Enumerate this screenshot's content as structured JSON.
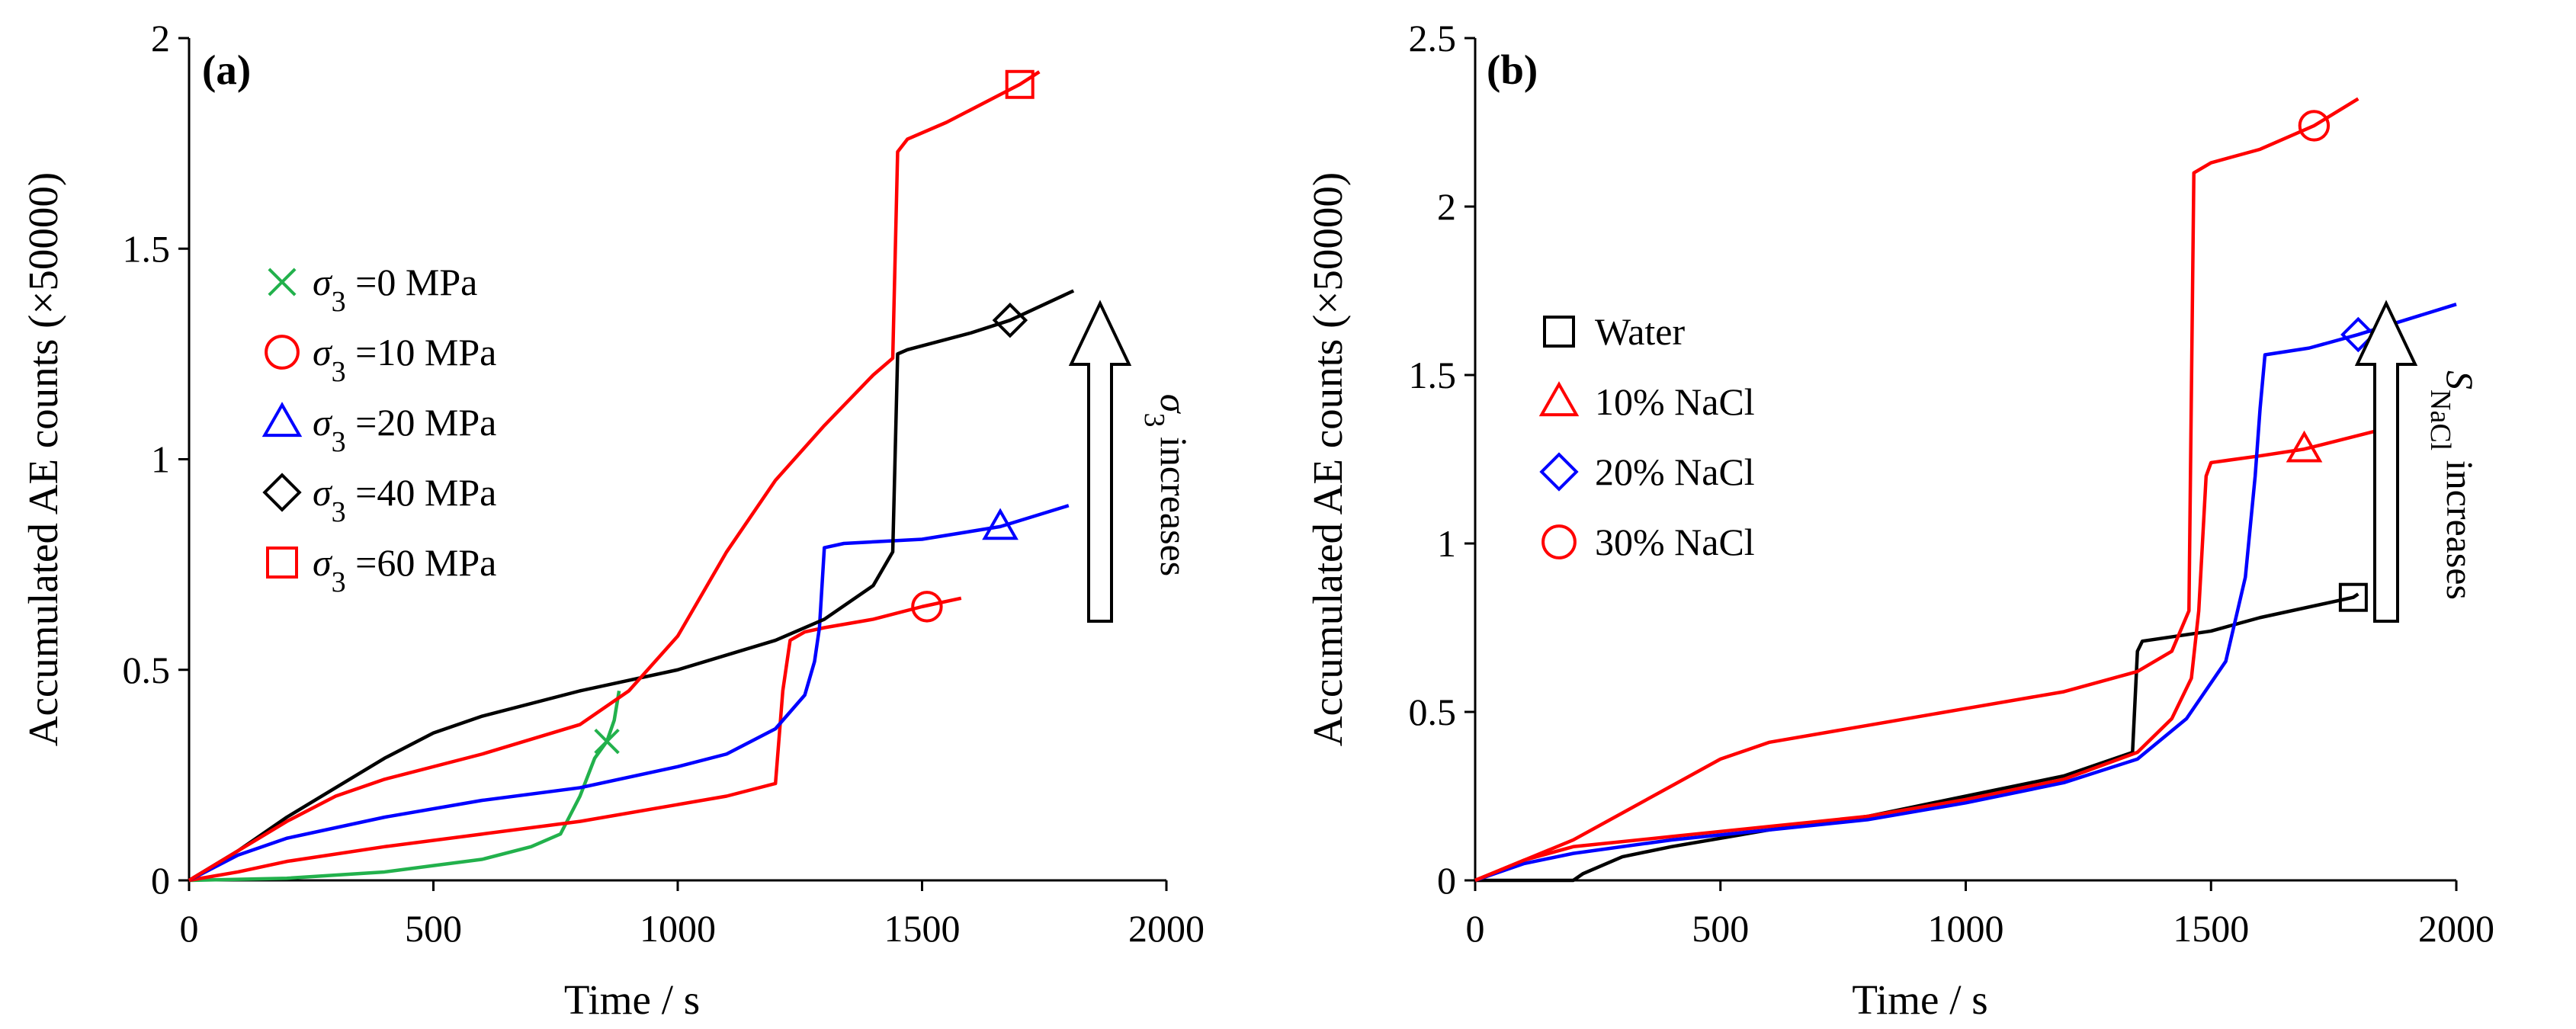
{
  "chart_data": [
    {
      "type": "line",
      "panel_label": "(a)",
      "xlabel": "Time / s",
      "ylabel": "Accumulated AE counts (×50000)",
      "xlim": [
        0,
        2000
      ],
      "ylim": [
        0,
        2
      ],
      "xticks": [
        "0",
        "500",
        "1000",
        "1500",
        "2000"
      ],
      "yticks": [
        "0",
        "0.5",
        "1",
        "1.5",
        "2"
      ],
      "arrow_label": {
        "symbol": "σ",
        "sub": "3",
        "text": " increases"
      },
      "legend_placement": "left",
      "series": [
        {
          "sym": "σ",
          "sub": "3",
          "value": " =0 MPa",
          "marker": "x",
          "color": "#22b14c",
          "marker_at": [
            855,
            0.33
          ],
          "x": [
            0,
            200,
            400,
            500,
            600,
            700,
            760,
            800,
            830,
            855,
            870,
            880
          ],
          "y": [
            0,
            0.005,
            0.02,
            0.035,
            0.05,
            0.08,
            0.11,
            0.2,
            0.29,
            0.33,
            0.38,
            0.45
          ]
        },
        {
          "sym": "σ",
          "sub": "3",
          "value": " =10 MPa",
          "marker": "circle",
          "color": "#ff0000",
          "marker_at": [
            1510,
            0.65
          ],
          "x": [
            0,
            100,
            200,
            400,
            600,
            800,
            1000,
            1100,
            1200,
            1215,
            1230,
            1260,
            1300,
            1400,
            1500,
            1580
          ],
          "y": [
            0,
            0.02,
            0.045,
            0.08,
            0.11,
            0.14,
            0.18,
            0.2,
            0.23,
            0.45,
            0.57,
            0.59,
            0.6,
            0.62,
            0.65,
            0.67
          ]
        },
        {
          "sym": "σ",
          "sub": "3",
          "value": " =20 MPa",
          "marker": "triangle",
          "color": "#0000ff",
          "marker_at": [
            1660,
            0.84
          ],
          "x": [
            0,
            100,
            200,
            400,
            600,
            800,
            1000,
            1100,
            1200,
            1260,
            1280,
            1290,
            1300,
            1340,
            1500,
            1660,
            1800
          ],
          "y": [
            0,
            0.06,
            0.1,
            0.15,
            0.19,
            0.22,
            0.27,
            0.3,
            0.36,
            0.44,
            0.52,
            0.6,
            0.79,
            0.8,
            0.81,
            0.84,
            0.89
          ]
        },
        {
          "sym": "σ",
          "sub": "3",
          "value": " =40 MPa",
          "marker": "diamond",
          "color": "#000000",
          "marker_at": [
            1680,
            1.33
          ],
          "x": [
            0,
            100,
            200,
            300,
            400,
            500,
            600,
            800,
            1000,
            1200,
            1300,
            1400,
            1440,
            1450,
            1470,
            1600,
            1680,
            1810
          ],
          "y": [
            0,
            0.07,
            0.15,
            0.22,
            0.29,
            0.35,
            0.39,
            0.45,
            0.5,
            0.57,
            0.62,
            0.7,
            0.78,
            1.25,
            1.26,
            1.3,
            1.33,
            1.4
          ]
        },
        {
          "sym": "σ",
          "sub": "3",
          "value": " =60 MPa",
          "marker": "square",
          "color": "#ff0000",
          "marker_at": [
            1700,
            1.89
          ],
          "x": [
            0,
            100,
            200,
            300,
            400,
            600,
            800,
            900,
            1000,
            1100,
            1200,
            1300,
            1400,
            1440,
            1450,
            1470,
            1550,
            1700,
            1740
          ],
          "y": [
            0,
            0.07,
            0.14,
            0.2,
            0.24,
            0.3,
            0.37,
            0.45,
            0.58,
            0.78,
            0.95,
            1.08,
            1.2,
            1.24,
            1.73,
            1.76,
            1.8,
            1.89,
            1.92
          ]
        }
      ]
    },
    {
      "type": "line",
      "panel_label": "(b)",
      "xlabel": "Time / s",
      "ylabel": "Accumulated AE counts (×50000)",
      "xlim": [
        0,
        2000
      ],
      "ylim": [
        0,
        2.5
      ],
      "xticks": [
        "0",
        "500",
        "1000",
        "1500",
        "2000"
      ],
      "yticks": [
        "0",
        "0.5",
        "1",
        "1.5",
        "2",
        "2.5"
      ],
      "arrow_label": {
        "symbol": "S",
        "sub": "NaCl",
        "text": " increases"
      },
      "legend_placement": "left",
      "series": [
        {
          "label": "Water",
          "marker": "square",
          "color": "#000000",
          "marker_at": [
            1790,
            0.84
          ],
          "x": [
            0,
            200,
            220,
            300,
            400,
            600,
            800,
            1000,
            1200,
            1340,
            1350,
            1360,
            1500,
            1600,
            1790,
            1800
          ],
          "y": [
            0,
            0,
            0.02,
            0.07,
            0.1,
            0.15,
            0.19,
            0.25,
            0.31,
            0.38,
            0.68,
            0.71,
            0.74,
            0.78,
            0.84,
            0.85
          ]
        },
        {
          "label": "10% NaCl",
          "marker": "triangle",
          "color": "#ff0000",
          "marker_at": [
            1690,
            1.28
          ],
          "x": [
            0,
            100,
            200,
            400,
            600,
            800,
            1000,
            1200,
            1350,
            1420,
            1460,
            1475,
            1490,
            1500,
            1600,
            1690,
            1880
          ],
          "y": [
            0,
            0.06,
            0.1,
            0.13,
            0.16,
            0.19,
            0.24,
            0.3,
            0.38,
            0.48,
            0.6,
            0.8,
            1.2,
            1.24,
            1.26,
            1.28,
            1.35
          ]
        },
        {
          "label": "20% NaCl",
          "marker": "diamond",
          "color": "#0000ff",
          "marker_at": [
            1800,
            1.62
          ],
          "x": [
            0,
            100,
            200,
            400,
            600,
            800,
            1000,
            1200,
            1350,
            1450,
            1530,
            1570,
            1590,
            1600,
            1610,
            1700,
            1800,
            2000
          ],
          "y": [
            0,
            0.05,
            0.08,
            0.12,
            0.15,
            0.18,
            0.23,
            0.29,
            0.36,
            0.48,
            0.65,
            0.9,
            1.2,
            1.4,
            1.56,
            1.58,
            1.62,
            1.71
          ]
        },
        {
          "label": "30% NaCl",
          "marker": "circle",
          "color": "#ff0000",
          "marker_at": [
            1710,
            2.24
          ],
          "x": [
            0,
            100,
            200,
            300,
            400,
            500,
            600,
            800,
            1000,
            1200,
            1350,
            1420,
            1455,
            1465,
            1500,
            1600,
            1710,
            1800
          ],
          "y": [
            0,
            0.06,
            0.12,
            0.2,
            0.28,
            0.36,
            0.41,
            0.46,
            0.51,
            0.56,
            0.62,
            0.68,
            0.8,
            2.1,
            2.13,
            2.17,
            2.24,
            2.32
          ]
        }
      ]
    }
  ]
}
